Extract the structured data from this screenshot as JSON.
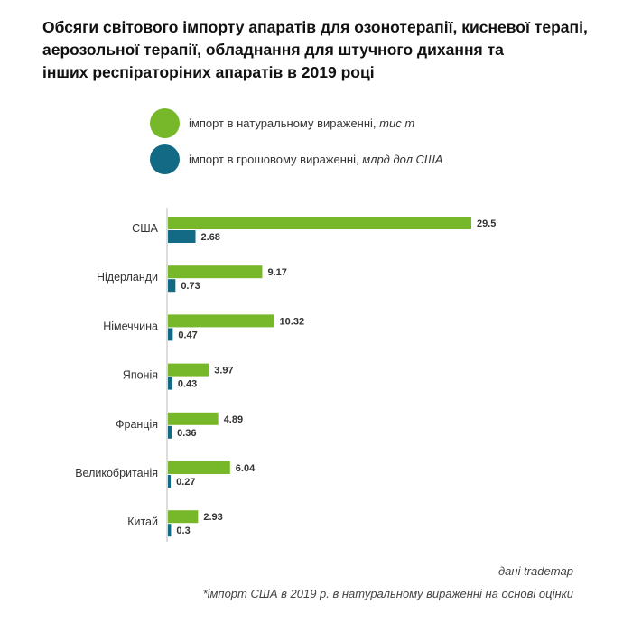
{
  "title_lines": [
    "Обсяги світового імпорту апаратів для озонотерапії, кисневої терапі,",
    "аерозольної терапії, обладнання для штучного дихання та",
    "інших респіраторіних апаратів в 2019 році"
  ],
  "legend": [
    {
      "label": "імпорт в натуральному вираженні, ",
      "unit": "тис т",
      "color": "#76b82a"
    },
    {
      "label": "імпорт в грошовому вираженні, ",
      "unit": "млрд дол США",
      "color": "#136a84"
    }
  ],
  "chart_data": {
    "type": "bar",
    "orientation": "horizontal",
    "categories": [
      "США",
      "Нідерланди",
      "Німеччина",
      "Японія",
      "Франція",
      "Великобританія",
      "Китай"
    ],
    "series": [
      {
        "name": "імпорт в натуральному вираженні, тис т",
        "values": [
          29.5,
          9.17,
          10.32,
          3.97,
          4.89,
          6.04,
          2.93
        ],
        "color": "#76b82a"
      },
      {
        "name": "імпорт в грошовому вираженні, млрд дол США",
        "values": [
          2.68,
          0.73,
          0.47,
          0.43,
          0.36,
          0.27,
          0.3
        ],
        "color": "#136a84"
      }
    ],
    "value_labels": [
      [
        "29.5",
        "9.17",
        "10.32",
        "3.97",
        "4.89",
        "6.04",
        "2.93"
      ],
      [
        "2.68",
        "0.73",
        "0.47",
        "0.43",
        "0.36",
        "0.27",
        "0.3"
      ]
    ],
    "grid": false,
    "legend_position": "top"
  },
  "source": "дані tradеmap",
  "note": "*імпорт США в 2019 р. в натуральному вираженні на основі оцінки"
}
